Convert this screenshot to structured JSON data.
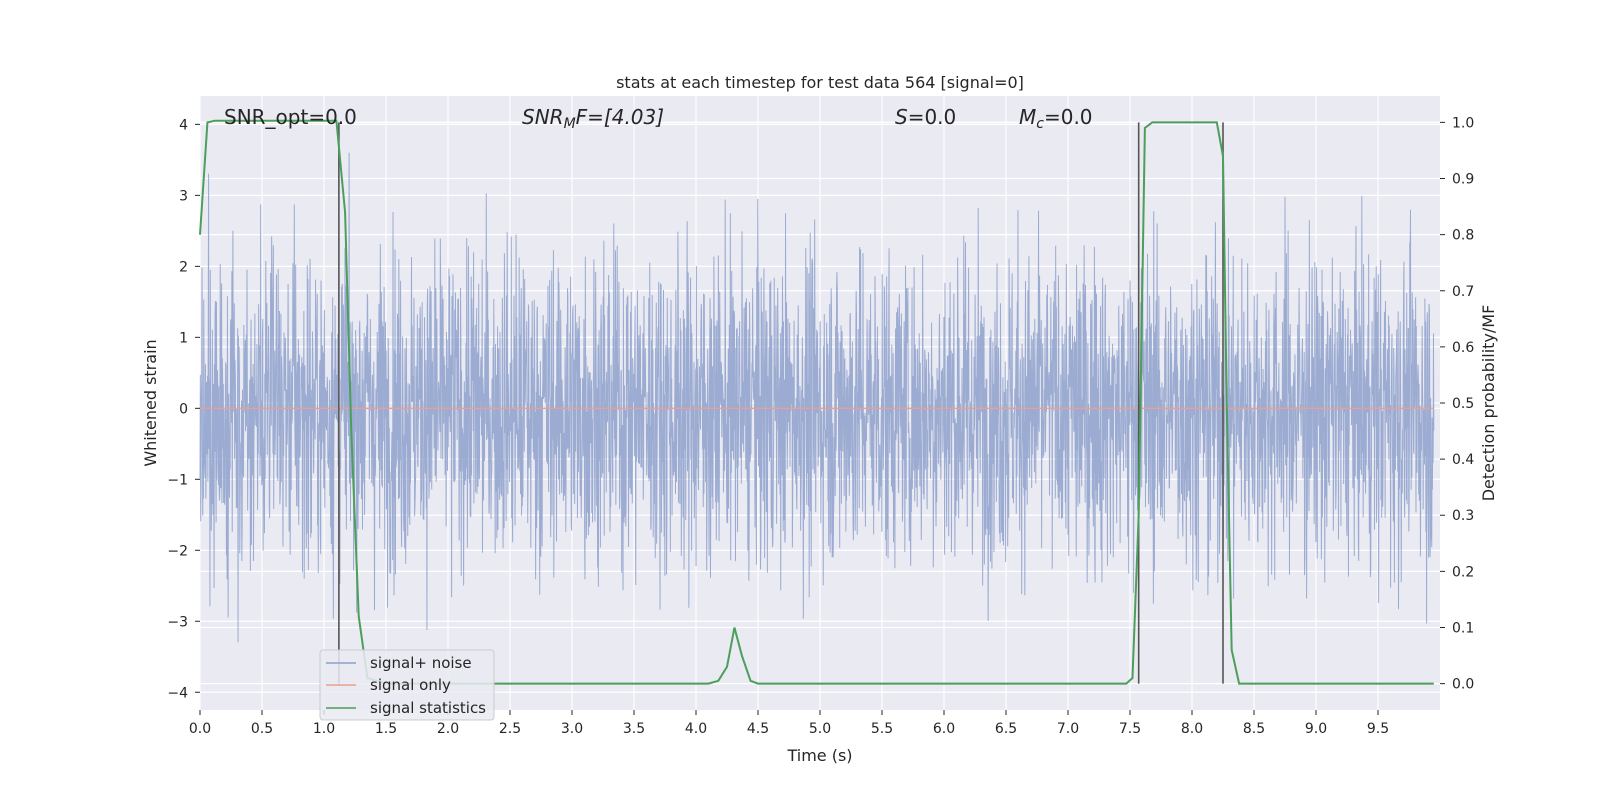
{
  "chart_data": {
    "type": "line",
    "title": "stats at each timestep for test data 564 [signal=0]",
    "xlabel": "Time (s)",
    "ylabel": "Whitened strain",
    "ylabel_right": "Detection probability/MF",
    "xlim": [
      0.0,
      10.0
    ],
    "ylim": [
      -4.25,
      4.4
    ],
    "ylim_right": [
      -0.047,
      1.047
    ],
    "x_ticks": [
      0.0,
      0.5,
      1.0,
      1.5,
      2.0,
      2.5,
      3.0,
      3.5,
      4.0,
      4.5,
      5.0,
      5.5,
      6.0,
      6.5,
      7.0,
      7.5,
      8.0,
      8.5,
      9.0,
      9.5
    ],
    "x_tick_labels": [
      "0.0",
      "0.5",
      "1.0",
      "1.5",
      "2.0",
      "2.5",
      "3.0",
      "3.5",
      "4.0",
      "4.5",
      "5.0",
      "5.5",
      "6.0",
      "6.5",
      "7.0",
      "7.5",
      "8.0",
      "8.5",
      "9.0",
      "9.5"
    ],
    "y_ticks": [
      -4,
      -3,
      -2,
      -1,
      0,
      1,
      2,
      3,
      4
    ],
    "y_tick_labels": [
      "−4",
      "−3",
      "−2",
      "−1",
      "0",
      "1",
      "2",
      "3",
      "4"
    ],
    "y_right_ticks": [
      0.0,
      0.1,
      0.2,
      0.3,
      0.4,
      0.5,
      0.6,
      0.7,
      0.8,
      0.9,
      1.0
    ],
    "y_right_tick_labels": [
      "0.0",
      "0.1",
      "0.2",
      "0.3",
      "0.4",
      "0.5",
      "0.6",
      "0.7",
      "0.8",
      "0.9",
      "1.0"
    ],
    "grid": true,
    "legend_position": "lower-left",
    "annotations": [
      {
        "key": "snr_opt",
        "text": "SNR_opt=0.0"
      },
      {
        "key": "snr_mf",
        "text": "SNR",
        "sub": "M",
        "tail": "F=[4.03]"
      },
      {
        "key": "s",
        "text": "S",
        "tail": "=0.0"
      },
      {
        "key": "mc",
        "text": "M",
        "sub": "c",
        "tail": "=0.0"
      }
    ],
    "vertical_lines_x": [
      1.12,
      7.57,
      8.25
    ],
    "series": [
      {
        "name": "signal+ noise",
        "color": "#8da0cb",
        "kind": "noise",
        "noise_amplitude_range": [
          -3.9,
          3.6
        ],
        "noise_typical_abs": 1.1
      },
      {
        "name": "signal only",
        "color": "#e8a090",
        "kind": "flat",
        "y": 0.0
      },
      {
        "name": "signal statistics",
        "color": "#4c9e5a",
        "axis": "right",
        "x": [
          0.0,
          0.06,
          0.12,
          0.3,
          0.6,
          0.9,
          1.1,
          1.17,
          1.22,
          1.28,
          1.35,
          1.5,
          2.0,
          3.0,
          4.0,
          4.1,
          4.18,
          4.25,
          4.31,
          4.37,
          4.44,
          4.5,
          5.0,
          6.0,
          7.0,
          7.47,
          7.52,
          7.57,
          7.62,
          7.68,
          7.8,
          8.0,
          8.2,
          8.25,
          8.28,
          8.32,
          8.38,
          8.5,
          9.0,
          9.5,
          9.95
        ],
        "y": [
          0.8,
          1.0,
          1.003,
          1.003,
          1.003,
          1.003,
          1.003,
          0.84,
          0.45,
          0.12,
          0.01,
          0.0,
          0.0,
          0.0,
          0.0,
          0.0,
          0.005,
          0.03,
          0.1,
          0.05,
          0.005,
          0.0,
          0.0,
          0.0,
          0.0,
          0.0,
          0.01,
          0.3,
          0.99,
          1.0,
          1.0,
          1.0,
          1.0,
          0.94,
          0.5,
          0.06,
          0.0,
          0.0,
          0.0,
          0.0,
          0.0
        ]
      }
    ]
  }
}
